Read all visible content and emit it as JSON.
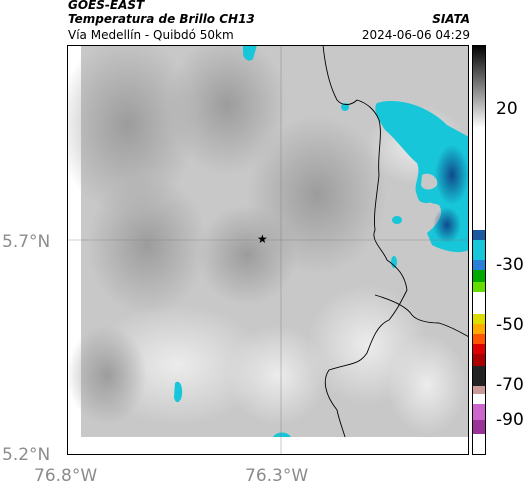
{
  "header": {
    "title_line1": "GOES-EAST",
    "title_line2": "Temperatura de Brillo CH13",
    "brand": "SIATA",
    "subtitle": "Vía Medellín - Quibdó 50km",
    "datetime": "2024-06-06 04:29"
  },
  "axes": {
    "lat_ticks": [
      "5.7°N",
      "5.2°N"
    ],
    "lon_ticks": [
      "76.8°W",
      "76.3°W"
    ]
  },
  "colorbar": {
    "ticks": [
      "20",
      "-30",
      "-50",
      "-70",
      "-90"
    ]
  },
  "map": {
    "marker": "star-marker",
    "background": "#d0d0d0",
    "cold_cloud_color": "#17c6d8"
  }
}
